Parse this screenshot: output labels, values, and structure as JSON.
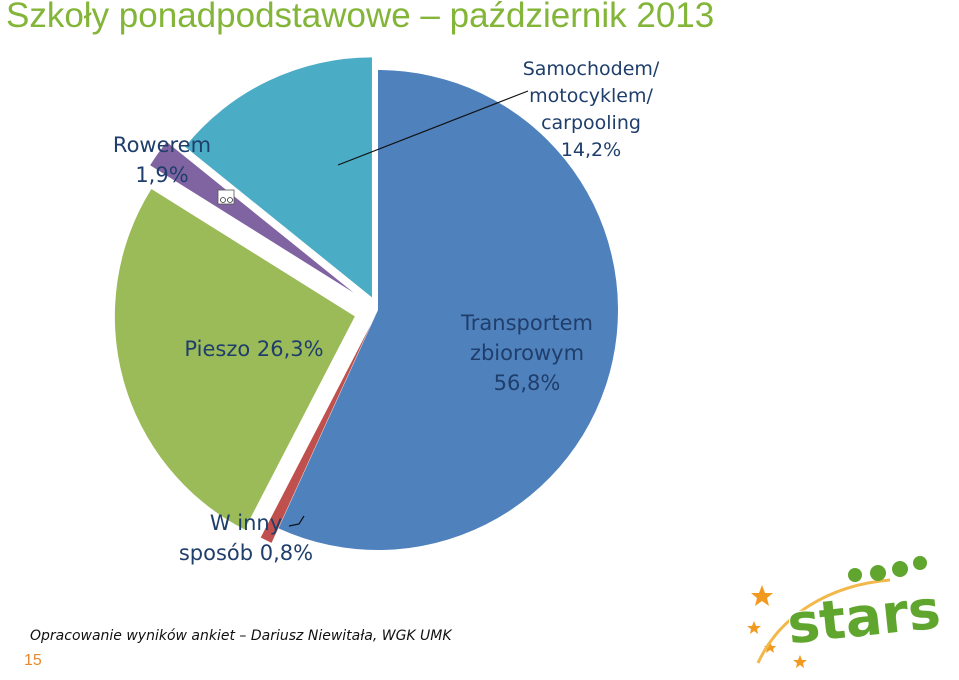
{
  "slide": {
    "title": "Szkoły ponadpodstawowe – październik 2013",
    "source": "Opracowanie wyników ankiet – Dariusz Niewitała, WGK UMK",
    "page_number": "15",
    "logo_text": "stars"
  },
  "colors": {
    "title": "#83B538",
    "page_number": "#E8892B",
    "logo_green": "#5FA52E",
    "logo_orange": "#F29A1F"
  },
  "chart_data": {
    "type": "pie",
    "title": "",
    "slices": [
      {
        "name": "Transportem zbiorowym",
        "value": 56.8,
        "value_label": "56,8%",
        "color": "#4F81BD",
        "label_lines": [
          "Transportem",
          "zbiorowym",
          "56,8%"
        ]
      },
      {
        "name": "W inny sposób",
        "value": 0.8,
        "value_label": "0,8%",
        "color": "#C0504D",
        "label_lines": [
          "W inny",
          "sposób 0,8%"
        ]
      },
      {
        "name": "Pieszo",
        "value": 26.3,
        "value_label": "26,3%",
        "color": "#9BBB59",
        "label_lines": [
          "Pieszo 26,3%"
        ]
      },
      {
        "name": "Rowerem",
        "value": 1.9,
        "value_label": "1,9%",
        "color": "#8064A2",
        "label_lines": [
          "Rowerem",
          "1,9%"
        ]
      },
      {
        "name": "Samochodem/ motocyklem/ carpooling",
        "value": 14.2,
        "value_label": "14,2%",
        "color": "#4BACC6",
        "label_lines": [
          "Samochodem/",
          "motocyklem/",
          "carpooling",
          "14,2%"
        ]
      }
    ]
  }
}
